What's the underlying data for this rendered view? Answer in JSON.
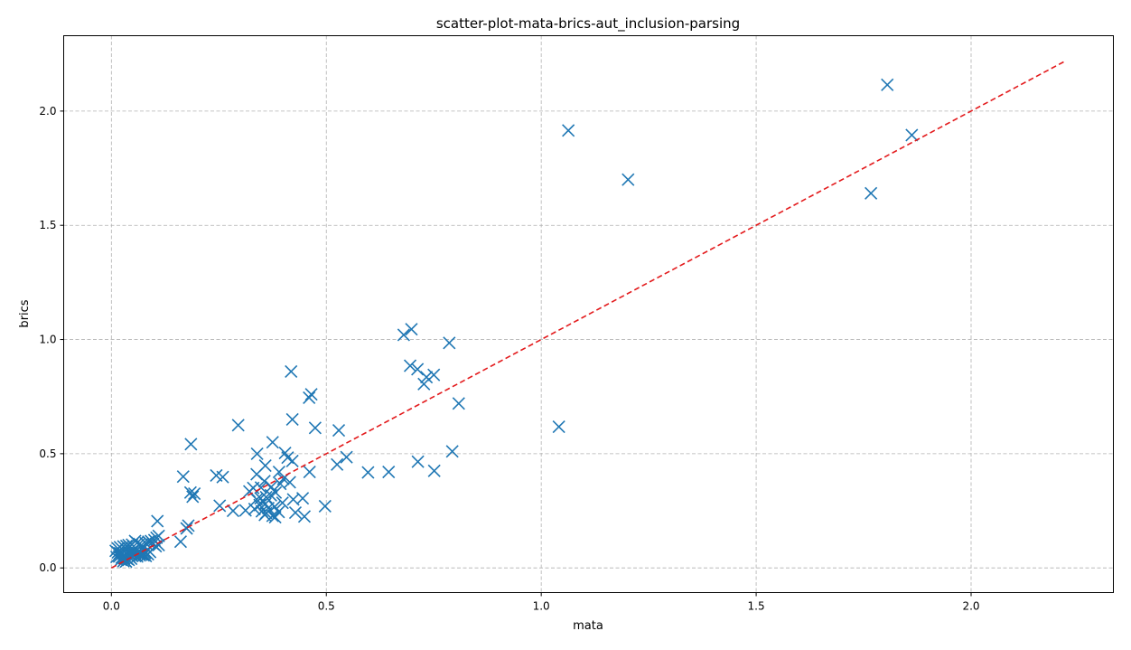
{
  "chart_data": {
    "type": "scatter",
    "title": "scatter-plot-mata-brics-aut_inclusion-parsing",
    "xlabel": "mata",
    "ylabel": "brics",
    "xlim": [
      -0.111,
      2.331
    ],
    "ylim": [
      -0.108,
      2.33
    ],
    "xticks": [
      0.0,
      0.5,
      1.0,
      1.5,
      2.0
    ],
    "yticks": [
      0.0,
      0.5,
      1.0,
      1.5,
      2.0
    ],
    "xtick_labels": [
      "0.0",
      "0.5",
      "1.0",
      "1.5",
      "2.0"
    ],
    "ytick_labels": [
      "0.0",
      "0.5",
      "1.0",
      "1.5",
      "2.0"
    ],
    "grid": true,
    "marker": "x",
    "marker_color": "#1f77b4",
    "reference_line": {
      "style": "dashed",
      "color": "#e31a1c",
      "from": [
        0.0,
        0.0
      ],
      "to": [
        2.22,
        2.22
      ]
    },
    "points": [
      [
        1.805,
        2.115
      ],
      [
        1.063,
        1.915
      ],
      [
        1.862,
        1.895
      ],
      [
        1.202,
        1.7
      ],
      [
        1.767,
        1.64
      ],
      [
        0.698,
        1.045
      ],
      [
        0.68,
        1.02
      ],
      [
        0.786,
        0.985
      ],
      [
        0.695,
        0.885
      ],
      [
        0.712,
        0.87
      ],
      [
        0.418,
        0.86
      ],
      [
        0.75,
        0.845
      ],
      [
        0.733,
        0.835
      ],
      [
        0.727,
        0.805
      ],
      [
        0.465,
        0.76
      ],
      [
        0.46,
        0.745
      ],
      [
        0.808,
        0.72
      ],
      [
        0.421,
        0.65
      ],
      [
        0.295,
        0.625
      ],
      [
        1.041,
        0.618
      ],
      [
        0.474,
        0.613
      ],
      [
        0.529,
        0.602
      ],
      [
        0.185,
        0.542
      ],
      [
        0.375,
        0.55
      ],
      [
        0.793,
        0.51
      ],
      [
        0.404,
        0.503
      ],
      [
        0.339,
        0.5
      ],
      [
        0.547,
        0.485
      ],
      [
        0.41,
        0.483
      ],
      [
        0.713,
        0.465
      ],
      [
        0.421,
        0.468
      ],
      [
        0.525,
        0.453
      ],
      [
        0.358,
        0.448
      ],
      [
        0.461,
        0.42
      ],
      [
        0.597,
        0.418
      ],
      [
        0.645,
        0.42
      ],
      [
        0.751,
        0.425
      ],
      [
        0.244,
        0.405
      ],
      [
        0.167,
        0.4
      ],
      [
        0.259,
        0.398
      ],
      [
        0.39,
        0.42
      ],
      [
        0.338,
        0.41
      ],
      [
        0.4,
        0.39
      ],
      [
        0.356,
        0.38
      ],
      [
        0.415,
        0.375
      ],
      [
        0.393,
        0.368
      ],
      [
        0.348,
        0.352
      ],
      [
        0.372,
        0.355
      ],
      [
        0.33,
        0.35
      ],
      [
        0.321,
        0.335
      ],
      [
        0.184,
        0.33
      ],
      [
        0.193,
        0.325
      ],
      [
        0.189,
        0.312
      ],
      [
        0.382,
        0.33
      ],
      [
        0.371,
        0.318
      ],
      [
        0.36,
        0.31
      ],
      [
        0.347,
        0.305
      ],
      [
        0.423,
        0.3
      ],
      [
        0.445,
        0.305
      ],
      [
        0.338,
        0.3
      ],
      [
        0.398,
        0.285
      ],
      [
        0.358,
        0.28
      ],
      [
        0.345,
        0.275
      ],
      [
        0.252,
        0.272
      ],
      [
        0.497,
        0.27
      ],
      [
        0.38,
        0.268
      ],
      [
        0.365,
        0.262
      ],
      [
        0.333,
        0.258
      ],
      [
        0.312,
        0.252
      ],
      [
        0.283,
        0.25
      ],
      [
        0.35,
        0.248
      ],
      [
        0.389,
        0.245
      ],
      [
        0.428,
        0.242
      ],
      [
        0.36,
        0.24
      ],
      [
        0.357,
        0.232
      ],
      [
        0.375,
        0.228
      ],
      [
        0.449,
        0.225
      ],
      [
        0.381,
        0.222
      ],
      [
        0.107,
        0.205
      ],
      [
        0.179,
        0.185
      ],
      [
        0.175,
        0.173
      ],
      [
        0.161,
        0.115
      ],
      [
        0.11,
        0.14
      ],
      [
        0.105,
        0.132
      ],
      [
        0.1,
        0.122
      ],
      [
        0.092,
        0.118
      ],
      [
        0.086,
        0.115
      ],
      [
        0.08,
        0.108
      ],
      [
        0.097,
        0.105
      ],
      [
        0.11,
        0.1
      ],
      [
        0.103,
        0.095
      ],
      [
        0.055,
        0.118
      ],
      [
        0.06,
        0.11
      ],
      [
        0.065,
        0.105
      ],
      [
        0.07,
        0.1
      ],
      [
        0.048,
        0.102
      ],
      [
        0.04,
        0.1
      ],
      [
        0.035,
        0.096
      ],
      [
        0.028,
        0.094
      ],
      [
        0.02,
        0.091
      ],
      [
        0.015,
        0.085
      ],
      [
        0.01,
        0.075
      ],
      [
        0.015,
        0.068
      ],
      [
        0.02,
        0.065
      ],
      [
        0.025,
        0.062
      ],
      [
        0.03,
        0.058
      ],
      [
        0.035,
        0.06
      ],
      [
        0.04,
        0.063
      ],
      [
        0.045,
        0.068
      ],
      [
        0.05,
        0.072
      ],
      [
        0.055,
        0.07
      ],
      [
        0.06,
        0.066
      ],
      [
        0.065,
        0.062
      ],
      [
        0.07,
        0.058
      ],
      [
        0.075,
        0.055
      ],
      [
        0.08,
        0.052
      ],
      [
        0.085,
        0.06
      ],
      [
        0.09,
        0.07
      ],
      [
        0.012,
        0.048
      ],
      [
        0.018,
        0.05
      ],
      [
        0.024,
        0.045
      ],
      [
        0.03,
        0.042
      ],
      [
        0.036,
        0.04
      ],
      [
        0.042,
        0.048
      ],
      [
        0.048,
        0.052
      ],
      [
        0.054,
        0.055
      ],
      [
        0.06,
        0.05
      ],
      [
        0.066,
        0.055
      ],
      [
        0.072,
        0.06
      ],
      [
        0.078,
        0.065
      ],
      [
        0.022,
        0.035
      ],
      [
        0.028,
        0.03
      ],
      [
        0.034,
        0.028
      ],
      [
        0.04,
        0.035
      ],
      [
        0.046,
        0.04
      ]
    ]
  }
}
